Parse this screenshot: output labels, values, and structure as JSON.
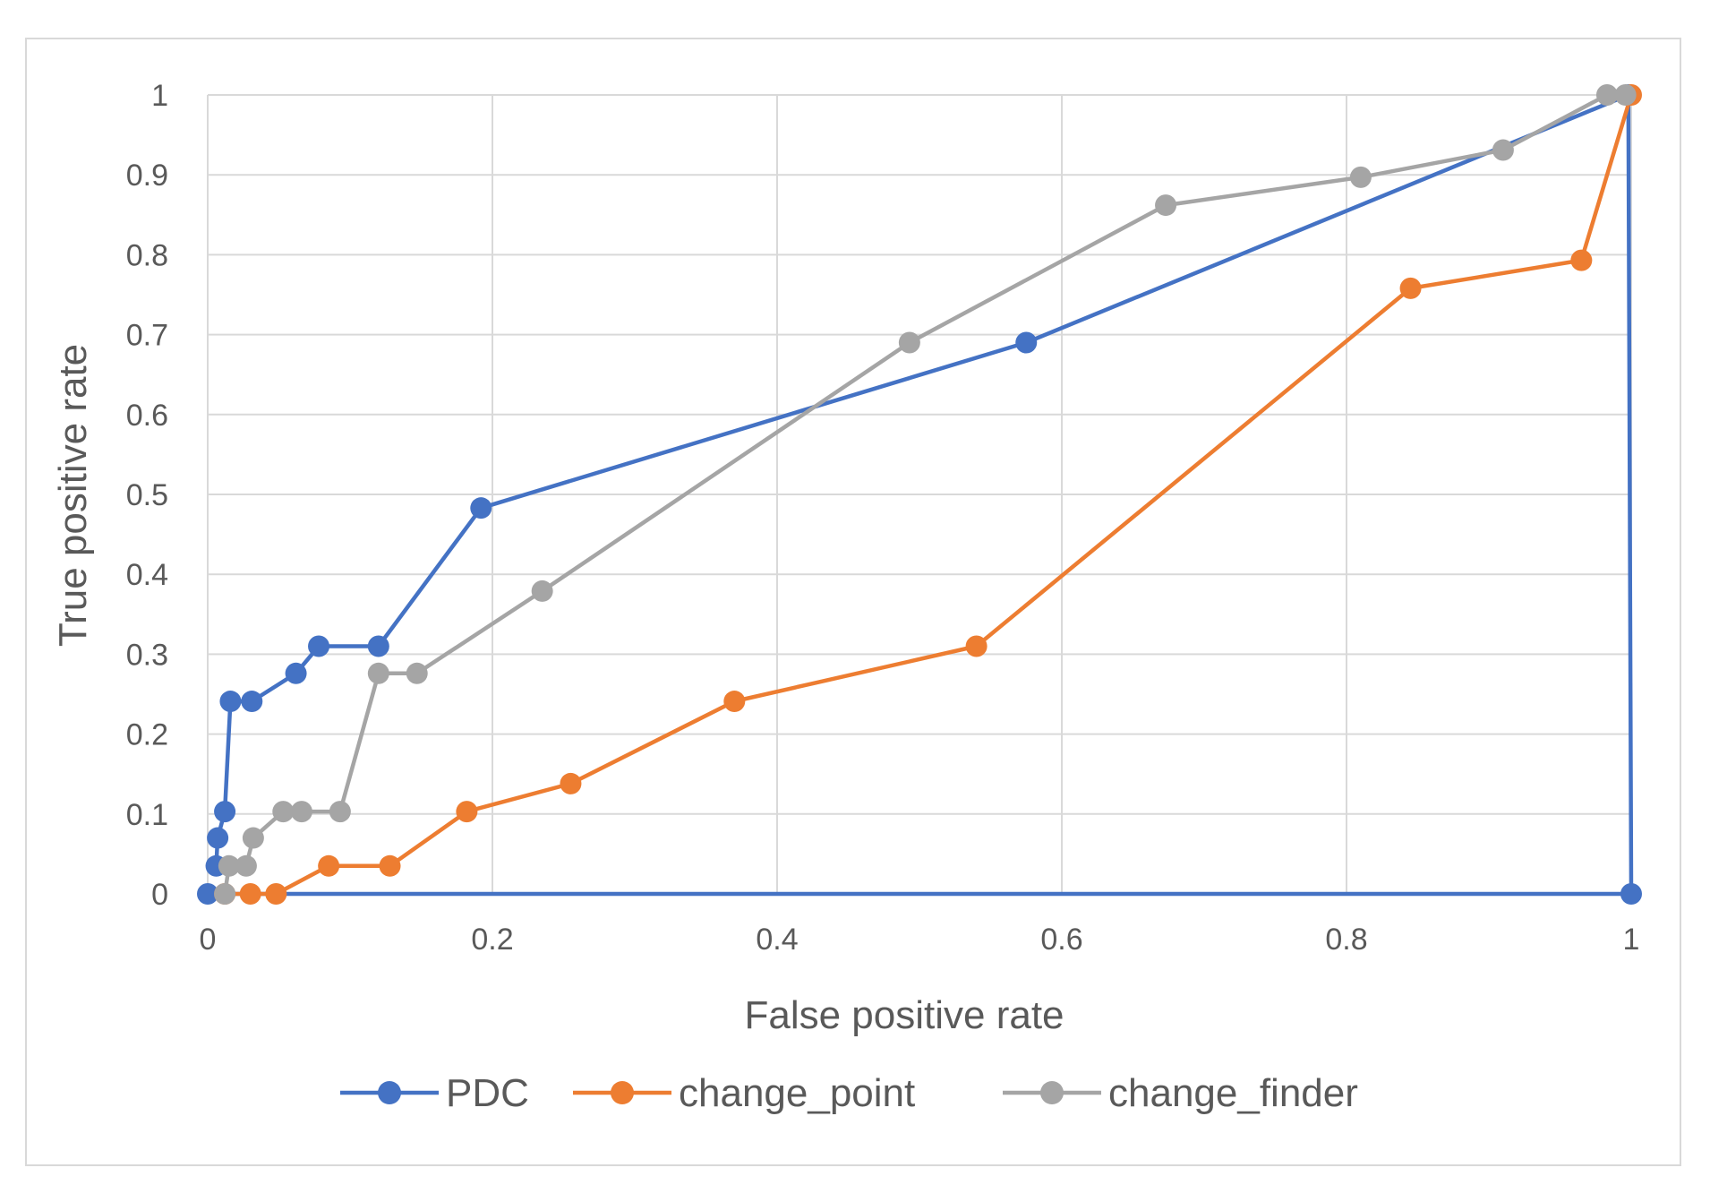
{
  "chart_data": {
    "type": "line",
    "title": "",
    "xlabel": "False positive rate",
    "ylabel": "True positive rate",
    "xlim": [
      0,
      1
    ],
    "ylim": [
      0,
      1
    ],
    "xticks": [
      "0",
      "0.2",
      "0.4",
      "0.6",
      "0.8",
      "1"
    ],
    "yticks": [
      "0",
      "0.1",
      "0.2",
      "0.3",
      "0.4",
      "0.5",
      "0.6",
      "0.7",
      "0.8",
      "0.9",
      "1"
    ],
    "grid": true,
    "legend_position": "bottom",
    "series": [
      {
        "name": "PDC",
        "color": "#4472c4",
        "points": [
          [
            0.006,
            0.035
          ],
          [
            0.007,
            0.07
          ],
          [
            0.012,
            0.103
          ],
          [
            0.016,
            0.241
          ],
          [
            0.031,
            0.241
          ],
          [
            0.062,
            0.276
          ],
          [
            0.078,
            0.31
          ],
          [
            0.12,
            0.31
          ],
          [
            0.192,
            0.483
          ],
          [
            0.575,
            0.69
          ],
          [
            0.998,
            1.0
          ],
          [
            1.0,
            0.0
          ],
          [
            0.0,
            0.0
          ]
        ]
      },
      {
        "name": "change_point",
        "color": "#ed7d31",
        "points": [
          [
            0.012,
            0.0
          ],
          [
            0.03,
            0.0
          ],
          [
            0.048,
            0.0
          ],
          [
            0.085,
            0.035
          ],
          [
            0.128,
            0.035
          ],
          [
            0.182,
            0.103
          ],
          [
            0.255,
            0.138
          ],
          [
            0.37,
            0.241
          ],
          [
            0.54,
            0.31
          ],
          [
            0.845,
            0.758
          ],
          [
            0.965,
            0.793
          ],
          [
            1.0,
            1.0
          ]
        ]
      },
      {
        "name": "change_finder",
        "color": "#a5a5a5",
        "points": [
          [
            0.012,
            0.0
          ],
          [
            0.015,
            0.035
          ],
          [
            0.027,
            0.035
          ],
          [
            0.032,
            0.07
          ],
          [
            0.053,
            0.103
          ],
          [
            0.066,
            0.103
          ],
          [
            0.093,
            0.103
          ],
          [
            0.12,
            0.276
          ],
          [
            0.147,
            0.276
          ],
          [
            0.235,
            0.379
          ],
          [
            0.493,
            0.69
          ],
          [
            0.673,
            0.862
          ],
          [
            0.81,
            0.897
          ],
          [
            0.91,
            0.931
          ],
          [
            0.983,
            1.0
          ],
          [
            0.996,
            1.0
          ]
        ]
      }
    ]
  }
}
